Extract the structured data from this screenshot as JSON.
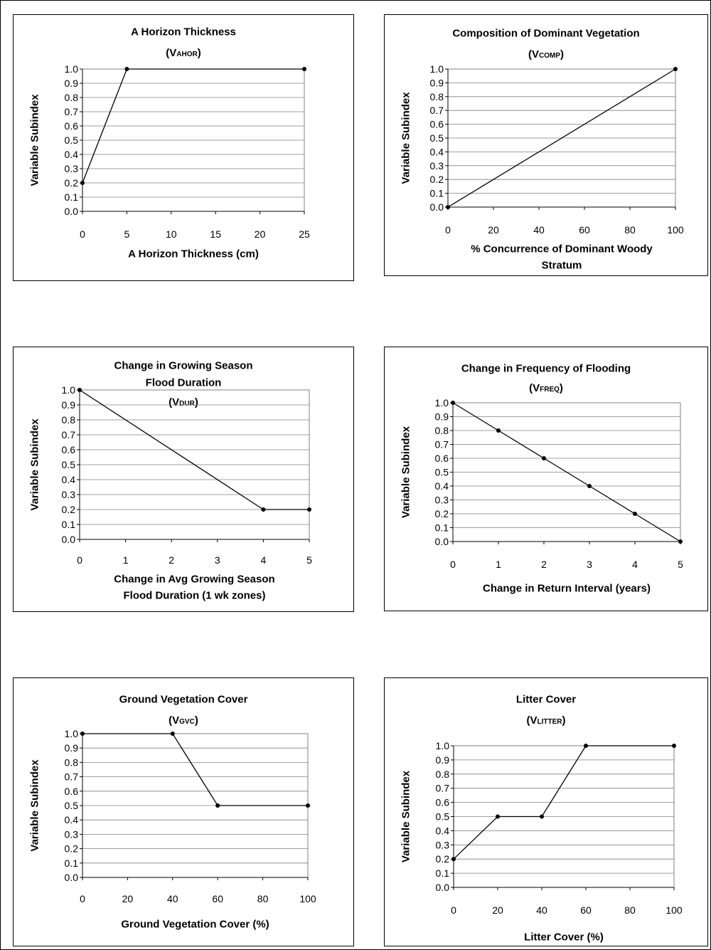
{
  "chart_data": [
    {
      "type": "line",
      "title": [
        "A Horizon Thickness"
      ],
      "subscript_title": {
        "prefix": "(V",
        "sub": "AHOR",
        "suffix": ")"
      },
      "xlabel": [
        "A Horizon Thickness (cm)"
      ],
      "ylabel": "Variable Subindex",
      "xlim": [
        0,
        25
      ],
      "ylim": [
        0,
        1
      ],
      "xticks": [
        0,
        5,
        10,
        15,
        20,
        25
      ],
      "yticks": [
        "0.0",
        "0.1",
        "0.2",
        "0.3",
        "0.4",
        "0.5",
        "0.6",
        "0.7",
        "0.8",
        "0.9",
        "1.0"
      ],
      "series": [
        {
          "x": [
            0,
            5,
            25
          ],
          "y": [
            0.2,
            1.0,
            1.0
          ]
        }
      ]
    },
    {
      "type": "line",
      "title": [
        "Composition of Dominant Vegetation"
      ],
      "subscript_title": {
        "prefix": "(V",
        "sub": "COMP",
        "suffix": ")"
      },
      "xlabel": [
        "% Concurrence of Dominant Woody",
        "Stratum"
      ],
      "ylabel": "Variable Subindex",
      "xlim": [
        0,
        100
      ],
      "ylim": [
        0,
        1
      ],
      "xticks": [
        0,
        20,
        40,
        60,
        80,
        100
      ],
      "yticks": [
        "0.0",
        "0.1",
        "0.2",
        "0.3",
        "0.4",
        "0.5",
        "0.6",
        "0.7",
        "0.8",
        "0.9",
        "1.0"
      ],
      "series": [
        {
          "x": [
            0,
            100
          ],
          "y": [
            0.0,
            1.0
          ]
        }
      ]
    },
    {
      "type": "line",
      "title": [
        "Change in Growing Season",
        "Flood Duration"
      ],
      "subscript_title": {
        "prefix": "(V",
        "sub": "DUR",
        "suffix": ")"
      },
      "xlabel": [
        "Change in Avg Growing Season",
        "Flood Duration (1 wk zones)"
      ],
      "ylabel": "Variable Subindex",
      "xlim": [
        0,
        5
      ],
      "ylim": [
        0,
        1
      ],
      "xticks": [
        0,
        1,
        2,
        3,
        4,
        5
      ],
      "yticks": [
        "0.0",
        "0.1",
        "0.2",
        "0.3",
        "0.4",
        "0.5",
        "0.6",
        "0.7",
        "0.8",
        "0.9",
        "1.0"
      ],
      "series": [
        {
          "x": [
            0,
            4,
            5
          ],
          "y": [
            1.0,
            0.2,
            0.2
          ]
        }
      ]
    },
    {
      "type": "line",
      "title": [
        "Change in Frequency of Flooding"
      ],
      "subscript_title": {
        "prefix": "(V",
        "sub": "FREQ",
        "suffix": ")"
      },
      "xlabel": [
        "Change in Return Interval (years)"
      ],
      "ylabel": "Variable Subindex",
      "xlim": [
        0,
        5
      ],
      "ylim": [
        0,
        1
      ],
      "xticks": [
        0,
        1,
        2,
        3,
        4,
        5
      ],
      "yticks": [
        "0.0",
        "0.1",
        "0.2",
        "0.3",
        "0.4",
        "0.5",
        "0.6",
        "0.7",
        "0.8",
        "0.9",
        "1.0"
      ],
      "series": [
        {
          "x": [
            0,
            1,
            2,
            3,
            4,
            5
          ],
          "y": [
            1.0,
            0.8,
            0.6,
            0.4,
            0.2,
            0.0
          ]
        }
      ]
    },
    {
      "type": "line",
      "title": [
        "Ground Vegetation Cover"
      ],
      "subscript_title": {
        "prefix": "(V",
        "sub": "GVC",
        "suffix": ")"
      },
      "xlabel": [
        "Ground Vegetation Cover (%)"
      ],
      "ylabel": "Variable Subindex",
      "xlim": [
        0,
        100
      ],
      "ylim": [
        0,
        1
      ],
      "xticks": [
        0,
        20,
        40,
        60,
        80,
        100
      ],
      "yticks": [
        "0.0",
        "0.1",
        "0.2",
        "0.3",
        "0.4",
        "0.5",
        "0.6",
        "0.7",
        "0.8",
        "0.9",
        "1.0"
      ],
      "series": [
        {
          "x": [
            0,
            40,
            60,
            100
          ],
          "y": [
            1.0,
            1.0,
            0.5,
            0.5
          ]
        }
      ]
    },
    {
      "type": "line",
      "title": [
        "Litter Cover"
      ],
      "subscript_title": {
        "prefix": "(V",
        "sub": "LITTER",
        "suffix": ")"
      },
      "xlabel": [
        "Litter Cover (%)"
      ],
      "ylabel": "Variable Subindex",
      "xlim": [
        0,
        100
      ],
      "ylim": [
        0,
        1
      ],
      "xticks": [
        0,
        20,
        40,
        60,
        80,
        100
      ],
      "yticks": [
        "0.0",
        "0.1",
        "0.2",
        "0.3",
        "0.4",
        "0.5",
        "0.6",
        "0.7",
        "0.8",
        "0.9",
        "1.0"
      ],
      "series": [
        {
          "x": [
            0,
            20,
            40,
            60,
            100
          ],
          "y": [
            0.2,
            0.5,
            0.5,
            1.0,
            1.0
          ]
        }
      ]
    }
  ]
}
